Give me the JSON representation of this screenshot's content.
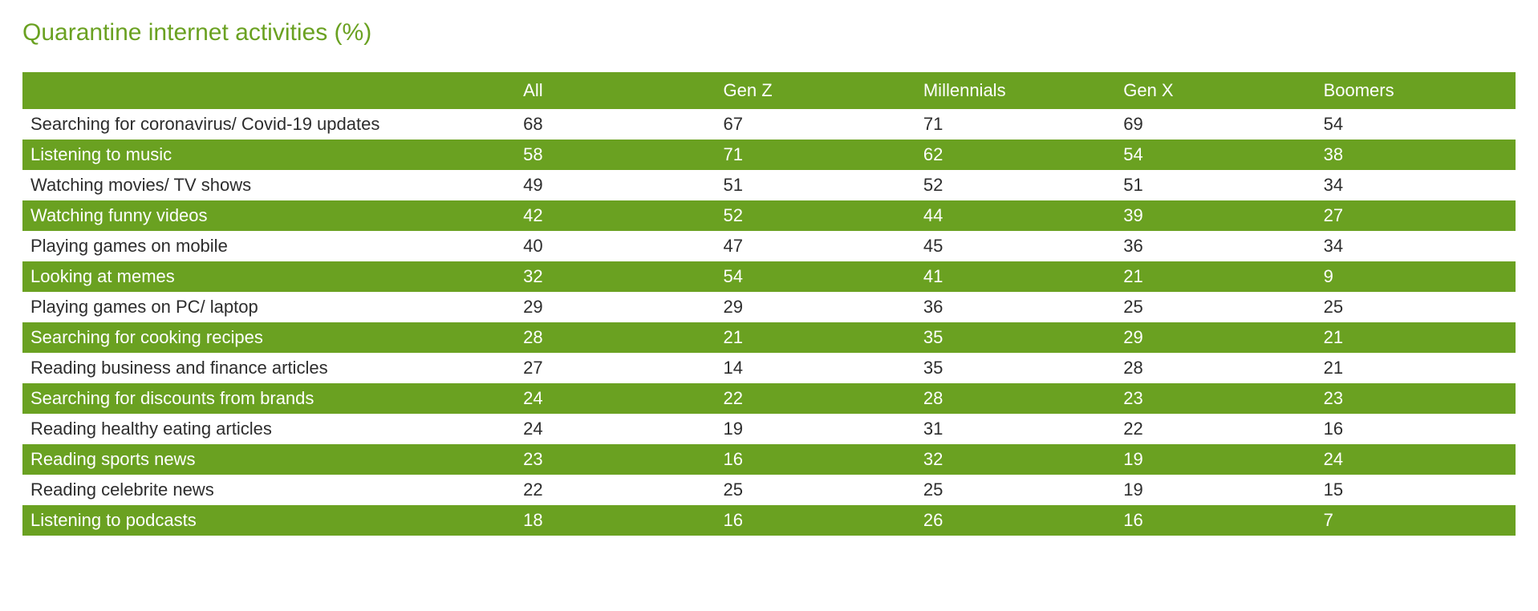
{
  "title": "Quarantine internet activities (%)",
  "title_color": "#6aa121",
  "header_bg": "#6aa121",
  "header_text_color": "#ffffff",
  "row_alt_bg": "#6aa121",
  "row_alt_text_color": "#ffffff",
  "row_plain_bg": "#ffffff",
  "row_plain_text_color": "#2d2d2d",
  "font_size_title_pt": 22,
  "font_size_cell_pt": 16,
  "columns": [
    "",
    "All",
    "Gen Z",
    "Millennials",
    "Gen X",
    "Boomers"
  ],
  "rows": [
    {
      "label": "Searching for coronavirus/ Covid-19 updates",
      "values": [
        68,
        67,
        71,
        69,
        54
      ]
    },
    {
      "label": "Listening to music",
      "values": [
        58,
        71,
        62,
        54,
        38
      ]
    },
    {
      "label": "Watching movies/ TV shows",
      "values": [
        49,
        51,
        52,
        51,
        34
      ]
    },
    {
      "label": "Watching funny videos",
      "values": [
        42,
        52,
        44,
        39,
        27
      ]
    },
    {
      "label": "Playing games on mobile",
      "values": [
        40,
        47,
        45,
        36,
        34
      ]
    },
    {
      "label": "Looking at memes",
      "values": [
        32,
        54,
        41,
        21,
        9
      ]
    },
    {
      "label": "Playing games on PC/ laptop",
      "values": [
        29,
        29,
        36,
        25,
        25
      ]
    },
    {
      "label": "Searching for cooking recipes",
      "values": [
        28,
        21,
        35,
        29,
        21
      ]
    },
    {
      "label": "Reading business and finance articles",
      "values": [
        27,
        14,
        35,
        28,
        21
      ]
    },
    {
      "label": "Searching for discounts from brands",
      "values": [
        24,
        22,
        28,
        23,
        23
      ]
    },
    {
      "label": "Reading healthy eating articles",
      "values": [
        24,
        19,
        31,
        22,
        16
      ]
    },
    {
      "label": "Reading sports news",
      "values": [
        23,
        16,
        32,
        19,
        24
      ]
    },
    {
      "label": "Reading celebrite news",
      "values": [
        22,
        25,
        25,
        19,
        15
      ]
    },
    {
      "label": "Listening to podcasts",
      "values": [
        18,
        16,
        26,
        16,
        7
      ]
    }
  ]
}
